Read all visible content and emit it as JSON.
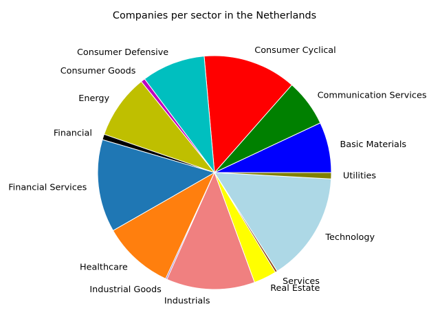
{
  "chart_data": {
    "type": "pie",
    "title": "Companies per sector in the Netherlands",
    "start_angle_deg": 0,
    "direction": "counterclockwise",
    "edge_color": "#ffffff",
    "slices": [
      {
        "label": "Basic Materials",
        "value": 7.3,
        "color": "#0000ff"
      },
      {
        "label": "Communication Services",
        "value": 6.8,
        "color": "#008000"
      },
      {
        "label": "Consumer Cyclical",
        "value": 13.5,
        "color": "#ff0000"
      },
      {
        "label": "Consumer Defensive",
        "value": 9.2,
        "color": "#00bfbf"
      },
      {
        "label": "Consumer Goods",
        "value": 0.6,
        "color": "#bf00bf"
      },
      {
        "label": "Energy",
        "value": 9.3,
        "color": "#bfbf00"
      },
      {
        "label": "Financial",
        "value": 0.8,
        "color": "#000000"
      },
      {
        "label": "Financial Services",
        "value": 13.4,
        "color": "#1f77b4"
      },
      {
        "label": "Healthcare",
        "value": 10.3,
        "color": "#ff7f0e"
      },
      {
        "label": "Industrial Goods",
        "value": 0.2,
        "color": "#9467bd"
      },
      {
        "label": "Industrials",
        "value": 12.8,
        "color": "#f08080"
      },
      {
        "label": "Real Estate",
        "value": 3.3,
        "color": "#ffff00"
      },
      {
        "label": "Services",
        "value": 0.3,
        "color": "#8b4513"
      },
      {
        "label": "Technology",
        "value": 15.8,
        "color": "#add8e6"
      },
      {
        "label": "Utilities",
        "value": 0.9,
        "color": "#808000"
      }
    ]
  }
}
